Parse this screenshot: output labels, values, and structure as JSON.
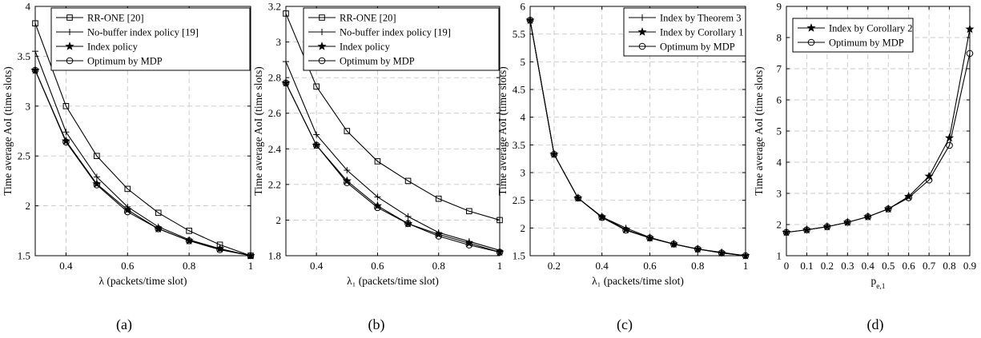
{
  "chart_data": [
    {
      "type": "line",
      "panel": "(a)",
      "caption": "(a)",
      "xlabel": "λ (packets/time slot)",
      "ylabel": "Time average AoI (time slots)",
      "xlim": [
        0.3,
        1.0
      ],
      "ylim": [
        1.5,
        4.0
      ],
      "xticks": [
        0.4,
        0.6,
        0.8,
        1.0
      ],
      "xtick_labels": [
        "0.4",
        "0.6",
        "0.8",
        "1"
      ],
      "yticks": [
        1.5,
        2.0,
        2.5,
        3.0,
        3.5,
        4.0
      ],
      "ytick_labels": [
        "1.5",
        "2",
        "2.5",
        "3",
        "3.5",
        "4"
      ],
      "grid": true,
      "legend_position": "top-right",
      "series": [
        {
          "name": "RR-ONE [20]",
          "marker": "square",
          "x": [
            0.3,
            0.4,
            0.5,
            0.6,
            0.7,
            0.8,
            0.9,
            1.0
          ],
          "values": [
            3.83,
            3.0,
            2.5,
            2.17,
            1.93,
            1.75,
            1.61,
            1.5
          ]
        },
        {
          "name": "No-buffer index policy [19]",
          "marker": "plus",
          "x": [
            0.3,
            0.4,
            0.5,
            0.6,
            0.7,
            0.8,
            0.9,
            1.0
          ],
          "values": [
            3.55,
            2.74,
            2.29,
            1.99,
            1.79,
            1.66,
            1.57,
            1.5
          ]
        },
        {
          "name": "Index policy",
          "marker": "star",
          "x": [
            0.3,
            0.4,
            0.5,
            0.6,
            0.7,
            0.8,
            0.9,
            1.0
          ],
          "values": [
            3.36,
            2.65,
            2.22,
            1.96,
            1.77,
            1.65,
            1.57,
            1.5
          ]
        },
        {
          "name": "Optimum by MDP",
          "marker": "circle",
          "x": [
            0.3,
            0.4,
            0.5,
            0.6,
            0.7,
            0.8,
            0.9,
            1.0
          ],
          "values": [
            3.36,
            2.64,
            2.21,
            1.94,
            1.77,
            1.65,
            1.56,
            1.5
          ]
        }
      ]
    },
    {
      "type": "line",
      "panel": "(b)",
      "caption": "(b)",
      "xlabel": "λ₁ (packets/time slot)",
      "ylabel": "Time average AoI (time slots)",
      "xlim": [
        0.3,
        1.0
      ],
      "ylim": [
        1.8,
        3.2
      ],
      "xticks": [
        0.4,
        0.6,
        0.8,
        1.0
      ],
      "xtick_labels": [
        "0.4",
        "0.6",
        "0.8",
        "1"
      ],
      "yticks": [
        1.8,
        2.0,
        2.2,
        2.4,
        2.6,
        2.8,
        3.0,
        3.2
      ],
      "ytick_labels": [
        "1.8",
        "2",
        "2.2",
        "2.4",
        "2.6",
        "2.8",
        "3",
        "3.2"
      ],
      "grid": true,
      "legend_position": "top-right",
      "series": [
        {
          "name": "RR-ONE [20]",
          "marker": "square",
          "x": [
            0.3,
            0.4,
            0.5,
            0.6,
            0.7,
            0.8,
            0.9,
            1.0
          ],
          "values": [
            3.16,
            2.75,
            2.5,
            2.33,
            2.22,
            2.12,
            2.05,
            2.0
          ]
        },
        {
          "name": "No-buffer index policy [19]",
          "marker": "plus",
          "x": [
            0.3,
            0.4,
            0.5,
            0.6,
            0.7,
            0.8,
            0.9,
            1.0
          ],
          "values": [
            2.89,
            2.48,
            2.28,
            2.13,
            2.02,
            1.93,
            1.88,
            1.83
          ]
        },
        {
          "name": "Index policy",
          "marker": "star",
          "x": [
            0.3,
            0.4,
            0.5,
            0.6,
            0.7,
            0.8,
            0.9,
            1.0
          ],
          "values": [
            2.77,
            2.42,
            2.22,
            2.08,
            1.98,
            1.92,
            1.87,
            1.82
          ]
        },
        {
          "name": "Optimum by MDP",
          "marker": "circle",
          "x": [
            0.3,
            0.4,
            0.5,
            0.6,
            0.7,
            0.8,
            0.9,
            1.0
          ],
          "values": [
            2.77,
            2.42,
            2.21,
            2.07,
            1.98,
            1.91,
            1.86,
            1.82
          ]
        }
      ]
    },
    {
      "type": "line",
      "panel": "(c)",
      "caption": "(c)",
      "xlabel": "λ₁ (packets/time slot)",
      "ylabel": "Time average AoI (time slots)",
      "xlim": [
        0.1,
        1.0
      ],
      "ylim": [
        1.5,
        6.0
      ],
      "xticks": [
        0.2,
        0.4,
        0.6,
        0.8,
        1.0
      ],
      "xtick_labels": [
        "0.2",
        "0.4",
        "0.6",
        "0.8",
        "1"
      ],
      "yticks": [
        1.5,
        2.0,
        2.5,
        3.0,
        3.5,
        4.0,
        4.5,
        5.0,
        5.5,
        6.0
      ],
      "ytick_labels": [
        "1.5",
        "2",
        "2.5",
        "3",
        "3.5",
        "4",
        "4.5",
        "5",
        "5.5",
        "6"
      ],
      "grid": true,
      "legend_position": "top-right",
      "series": [
        {
          "name": "Index by Theorem 3",
          "marker": "plus",
          "x": [
            0.1,
            0.2,
            0.3,
            0.4,
            0.5,
            0.6,
            0.7,
            0.8,
            0.9,
            1.0
          ],
          "values": [
            5.75,
            3.33,
            2.54,
            2.2,
            2.0,
            1.83,
            1.71,
            1.62,
            1.56,
            1.5
          ]
        },
        {
          "name": "Index by Corollary 1",
          "marker": "star",
          "x": [
            0.1,
            0.2,
            0.3,
            0.4,
            0.5,
            0.6,
            0.7,
            0.8,
            0.9,
            1.0
          ],
          "values": [
            5.75,
            3.33,
            2.54,
            2.2,
            1.97,
            1.82,
            1.71,
            1.62,
            1.55,
            1.5
          ]
        },
        {
          "name": "Optimum by MDP",
          "marker": "circle",
          "x": [
            0.1,
            0.2,
            0.3,
            0.4,
            0.5,
            0.6,
            0.7,
            0.8,
            0.9,
            1.0
          ],
          "values": [
            5.75,
            3.33,
            2.54,
            2.19,
            1.96,
            1.82,
            1.71,
            1.62,
            1.55,
            1.5
          ]
        }
      ]
    },
    {
      "type": "line",
      "panel": "(d)",
      "caption": "(d)",
      "xlabel": "p",
      "xlabel_sub": "e,1",
      "ylabel": "Time average AoI (time slots)",
      "xlim": [
        0.0,
        0.9
      ],
      "ylim": [
        1.0,
        9.0
      ],
      "xticks": [
        0.0,
        0.1,
        0.2,
        0.3,
        0.4,
        0.5,
        0.6,
        0.7,
        0.8,
        0.9
      ],
      "xtick_labels": [
        "0",
        "0.1",
        "0.2",
        "0.3",
        "0.4",
        "0.5",
        "0.6",
        "0.7",
        "0.8",
        "0.9"
      ],
      "yticks": [
        1,
        2,
        3,
        4,
        5,
        6,
        7,
        8,
        9
      ],
      "ytick_labels": [
        "1",
        "2",
        "3",
        "4",
        "5",
        "6",
        "7",
        "8",
        "9"
      ],
      "grid": true,
      "legend_position": "top-left",
      "series": [
        {
          "name": "Index by Corollary 2",
          "marker": "star",
          "x": [
            0.0,
            0.1,
            0.2,
            0.3,
            0.4,
            0.5,
            0.6,
            0.7,
            0.8,
            0.9
          ],
          "values": [
            1.75,
            1.83,
            1.93,
            2.07,
            2.25,
            2.5,
            2.9,
            3.55,
            4.78,
            8.27
          ]
        },
        {
          "name": "Optimum by MDP",
          "marker": "circle",
          "x": [
            0.0,
            0.1,
            0.2,
            0.3,
            0.4,
            0.5,
            0.6,
            0.7,
            0.8,
            0.9
          ],
          "values": [
            1.75,
            1.83,
            1.93,
            2.07,
            2.25,
            2.5,
            2.86,
            3.43,
            4.54,
            7.49
          ]
        }
      ]
    }
  ]
}
